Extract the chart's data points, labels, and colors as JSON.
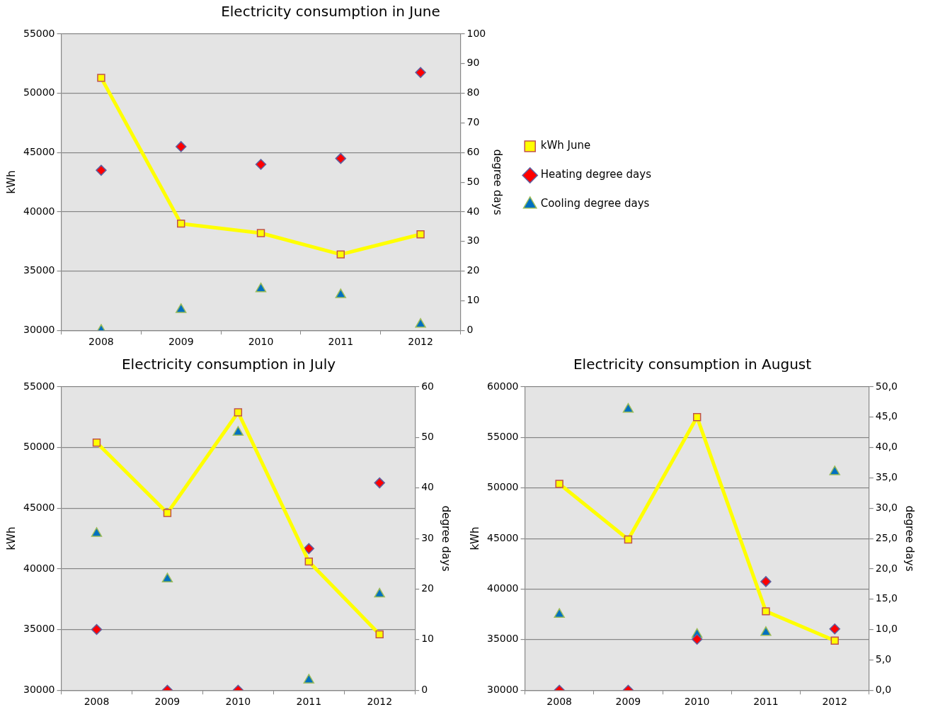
{
  "chart_data": [
    {
      "type": "line",
      "title": "Electricity consumption in June",
      "ylabel": "kWh",
      "y2label": "degree days",
      "categories": [
        "2008",
        "2009",
        "2010",
        "2011",
        "2012"
      ],
      "series": [
        {
          "name": "kWh June",
          "color": "#ffff00",
          "marker": "square",
          "values": [
            51300,
            39000,
            38200,
            36400,
            38100
          ]
        },
        {
          "name": "Heating degree days",
          "type": "scatter",
          "color": "#ff0000",
          "marker": "diamond",
          "axis": "y2",
          "values": [
            54,
            62,
            56,
            58,
            87
          ]
        },
        {
          "name": "Cooling degree days",
          "type": "scatter",
          "color": "#0070c0",
          "marker": "triangle",
          "axis": "y2",
          "values": [
            0,
            7,
            14,
            12,
            2
          ]
        }
      ],
      "ylim": [
        30000,
        55000
      ],
      "yticks": [
        30000,
        35000,
        40000,
        45000,
        50000,
        55000
      ],
      "y2lim": [
        0,
        100
      ],
      "y2ticks": [
        0,
        10,
        20,
        30,
        40,
        50,
        60,
        70,
        80,
        90,
        100
      ],
      "grid": "y",
      "legend": "right"
    },
    {
      "type": "line",
      "title": "Electricity consumption in July",
      "ylabel": "kWh",
      "y2label": "degree days",
      "categories": [
        "2008",
        "2009",
        "2010",
        "2011",
        "2012"
      ],
      "series": [
        {
          "color": "#ffff00",
          "marker": "square",
          "values": [
            50400,
            44600,
            52900,
            40600,
            34600
          ]
        },
        {
          "type": "scatter",
          "color": "#ff0000",
          "marker": "diamond",
          "axis": "y2",
          "values": [
            12,
            0,
            0,
            28,
            41
          ]
        },
        {
          "type": "scatter",
          "color": "#0070c0",
          "marker": "triangle",
          "axis": "y2",
          "values": [
            31,
            22,
            51,
            2,
            19
          ]
        }
      ],
      "ylim": [
        30000,
        55000
      ],
      "yticks": [
        30000,
        35000,
        40000,
        45000,
        50000,
        55000
      ],
      "y2lim": [
        0,
        60
      ],
      "y2ticks": [
        0,
        10,
        20,
        30,
        40,
        50,
        60
      ],
      "grid": "y"
    },
    {
      "type": "line",
      "title": "Electricity consumption in August",
      "ylabel": "kWh",
      "y2label": "degree days",
      "categories": [
        "2008",
        "2009",
        "2010",
        "2011",
        "2012"
      ],
      "series": [
        {
          "color": "#ffff00",
          "marker": "square",
          "values": [
            50400,
            44900,
            57000,
            37800,
            34900
          ]
        },
        {
          "type": "scatter",
          "color": "#ff0000",
          "marker": "diamond",
          "axis": "y2",
          "values": [
            0,
            0,
            8.4,
            17.9,
            10.1
          ]
        },
        {
          "type": "scatter",
          "color": "#0070c0",
          "marker": "triangle",
          "axis": "y2",
          "values": [
            12.5,
            46.3,
            9.2,
            9.5,
            36
          ]
        }
      ],
      "ylim": [
        30000,
        60000
      ],
      "yticks": [
        30000,
        35000,
        40000,
        45000,
        50000,
        55000,
        60000
      ],
      "y2lim": [
        0,
        50
      ],
      "y2ticks": [
        {
          "value": 0,
          "label": "0,0"
        },
        {
          "value": 5,
          "label": "5,0"
        },
        {
          "value": 10,
          "label": "10,0"
        },
        {
          "value": 15,
          "label": "15,0"
        },
        {
          "value": 20,
          "label": "20,0"
        },
        {
          "value": 25,
          "label": "25,0"
        },
        {
          "value": 30,
          "label": "30,0"
        },
        {
          "value": 35,
          "label": "35,0"
        },
        {
          "value": 40,
          "label": "40,0"
        },
        {
          "value": 45,
          "label": "45,0"
        },
        {
          "value": 50,
          "label": "50,0"
        }
      ],
      "grid": "y"
    }
  ]
}
